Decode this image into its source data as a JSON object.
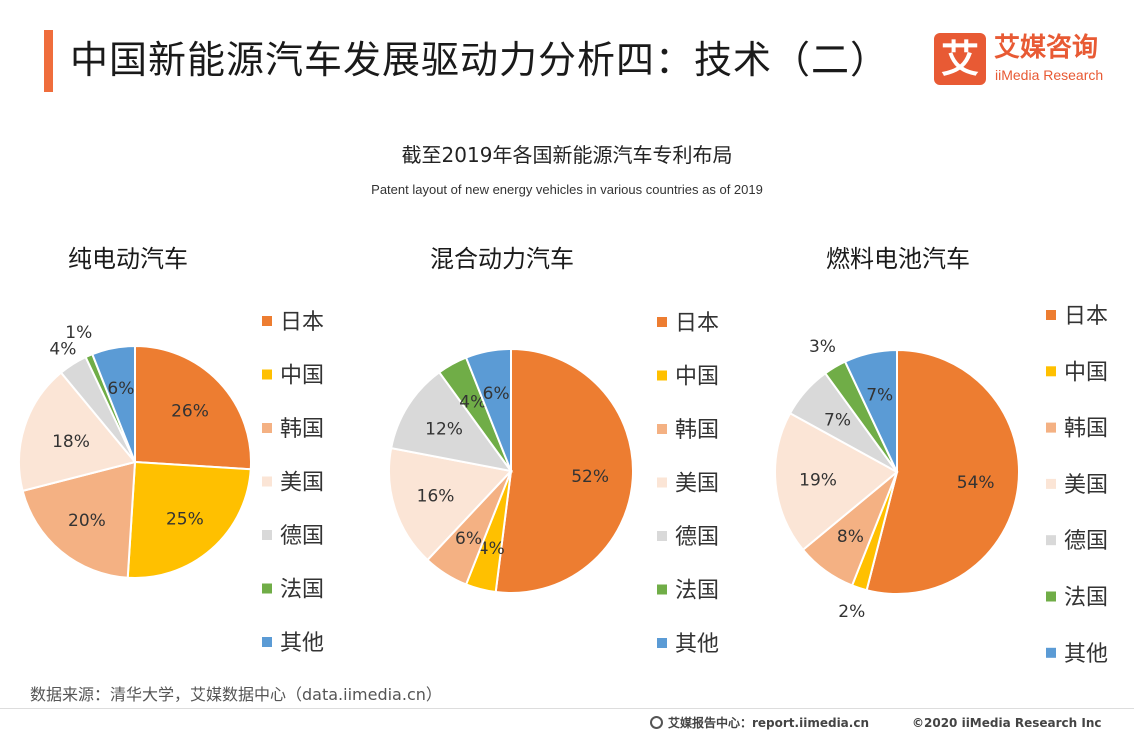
{
  "header": {
    "title": "中国新能源汽车发展驱动力分析四：技术（二）",
    "logo_mark": "艾",
    "logo_cn": "艾媒咨询",
    "logo_en": "iiMedia Research"
  },
  "source": "数据来源：清华大学，艾媒数据中心（data.iimedia.cn）",
  "footer": {
    "left": "艾媒报告中心：report.iimedia.cn",
    "right": "©2020  iiMedia Research  Inc"
  },
  "colors": {
    "accent": "#ef6d3c",
    "日本": "#ed7d31",
    "中国": "#ffc000",
    "韩国": "#f4b183",
    "美国": "#fbe5d6",
    "德国": "#d9d9d9",
    "法国": "#70ad47",
    "其他": "#5b9bd5"
  },
  "chart_data": [
    {
      "type": "pie",
      "title": "截至2019年各国新能源汽车专利布局",
      "subtitle": "Patent layout of new energy vehicles in various countries as of 2019",
      "pie_title": "纯电动汽车",
      "legend": [
        "日本",
        "中国",
        "韩国",
        "美国",
        "德国",
        "法国",
        "其他"
      ],
      "values": [
        26,
        25,
        20,
        18,
        4,
        1,
        6
      ],
      "labels": [
        "26%",
        "25%",
        "20%",
        "18%",
        "4%",
        "1%",
        "6%"
      ]
    },
    {
      "type": "pie",
      "pie_title": "混合动力汽车",
      "legend": [
        "日本",
        "中国",
        "韩国",
        "美国",
        "德国",
        "法国",
        "其他"
      ],
      "values": [
        52,
        4,
        6,
        16,
        12,
        4,
        6
      ],
      "labels": [
        "52%",
        "4%",
        "6%",
        "16%",
        "12%",
        "4%",
        "6%"
      ]
    },
    {
      "type": "pie",
      "pie_title": "燃料电池汽车",
      "legend": [
        "日本",
        "中国",
        "韩国",
        "美国",
        "德国",
        "法国",
        "其他"
      ],
      "values": [
        54,
        2,
        8,
        19,
        7,
        3,
        7
      ],
      "labels": [
        "54%",
        "2%",
        "8%",
        "19%",
        "7%",
        "3%",
        "7%"
      ]
    }
  ]
}
